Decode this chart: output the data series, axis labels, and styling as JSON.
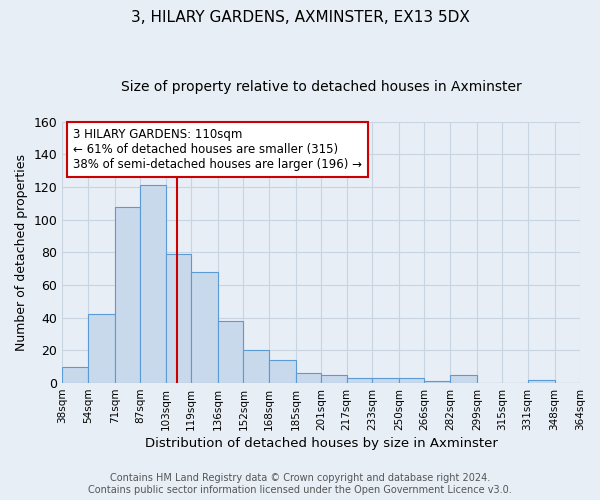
{
  "title": "3, HILARY GARDENS, AXMINSTER, EX13 5DX",
  "subtitle": "Size of property relative to detached houses in Axminster",
  "xlabel": "Distribution of detached houses by size in Axminster",
  "ylabel": "Number of detached properties",
  "bin_labels": [
    "38sqm",
    "54sqm",
    "71sqm",
    "87sqm",
    "103sqm",
    "119sqm",
    "136sqm",
    "152sqm",
    "168sqm",
    "185sqm",
    "201sqm",
    "217sqm",
    "233sqm",
    "250sqm",
    "266sqm",
    "282sqm",
    "299sqm",
    "315sqm",
    "331sqm",
    "348sqm",
    "364sqm"
  ],
  "bin_edges": [
    38,
    54,
    71,
    87,
    103,
    119,
    136,
    152,
    168,
    185,
    201,
    217,
    233,
    250,
    266,
    282,
    299,
    315,
    331,
    348,
    364
  ],
  "bar_heights": [
    10,
    42,
    108,
    121,
    79,
    68,
    38,
    20,
    14,
    6,
    5,
    3,
    3,
    3,
    1,
    5,
    0,
    0,
    2,
    0
  ],
  "bar_color": "#c8d9ec",
  "bar_edge_color": "#5b9bd5",
  "property_size": 110,
  "vline_color": "#cc0000",
  "ylim": [
    0,
    160
  ],
  "yticks": [
    0,
    20,
    40,
    60,
    80,
    100,
    120,
    140,
    160
  ],
  "annotation_line1": "3 HILARY GARDENS: 110sqm",
  "annotation_line2": "← 61% of detached houses are smaller (315)",
  "annotation_line3": "38% of semi-detached houses are larger (196) →",
  "annotation_box_color": "#ffffff",
  "annotation_box_edge": "#cc0000",
  "footer_line1": "Contains HM Land Registry data © Crown copyright and database right 2024.",
  "footer_line2": "Contains public sector information licensed under the Open Government Licence v3.0.",
  "background_color": "#e8eef5",
  "plot_bg_color": "#e8eef5",
  "grid_color": "#c8d4e0",
  "title_fontsize": 11,
  "subtitle_fontsize": 10,
  "ylabel_fontsize": 9,
  "xlabel_fontsize": 9.5,
  "annotation_fontsize": 8.5
}
